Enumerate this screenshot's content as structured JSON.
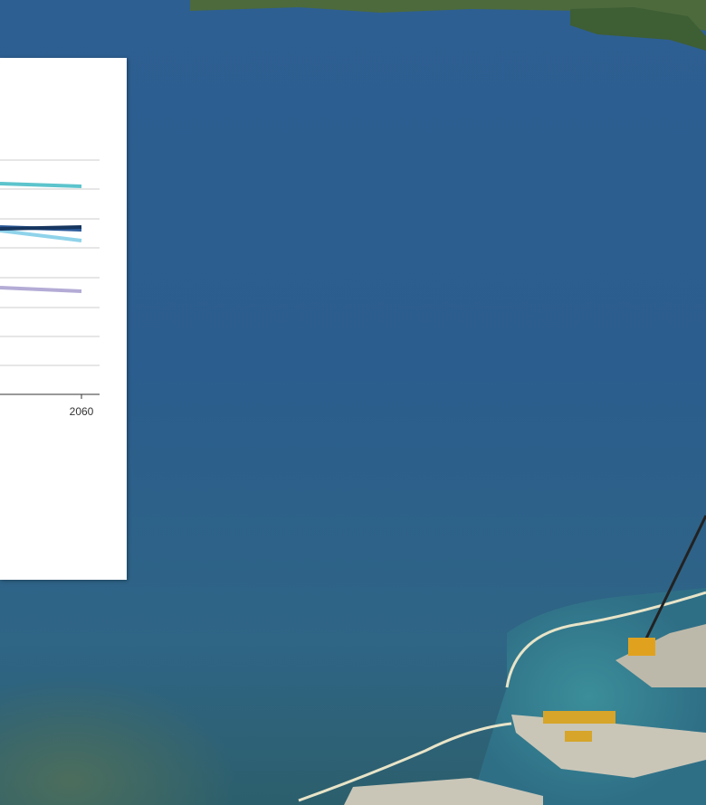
{
  "chart_data": {
    "type": "line",
    "xticks": [
      2060
    ]
  }
}
